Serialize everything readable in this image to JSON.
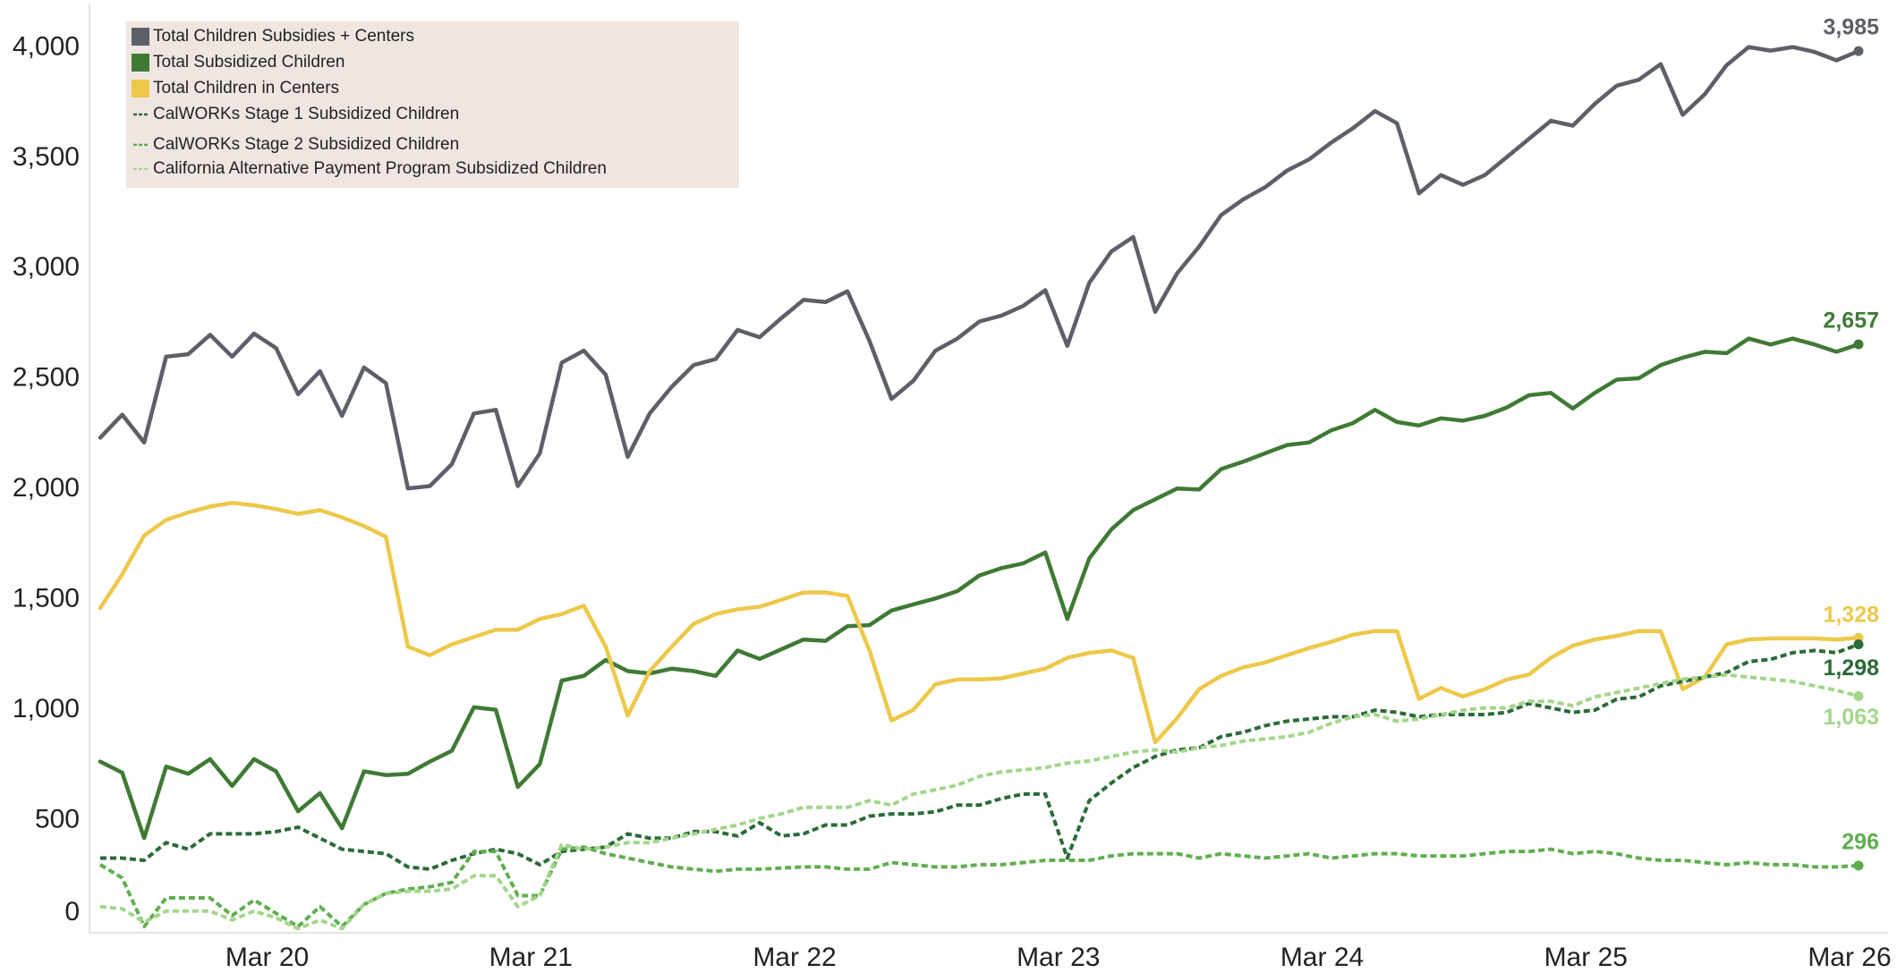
{
  "chart_data": {
    "type": "line",
    "categories": [
      null,
      null,
      null,
      null,
      null,
      null,
      null,
      null,
      "Mar 20",
      null,
      null,
      null,
      null,
      null,
      null,
      null,
      null,
      null,
      null,
      null,
      "Mar 21",
      null,
      null,
      null,
      null,
      null,
      null,
      null,
      null,
      null,
      null,
      null,
      "Mar 22",
      null,
      null,
      null,
      null,
      null,
      null,
      null,
      null,
      null,
      null,
      null,
      "Mar 23",
      null,
      null,
      null,
      null,
      null,
      null,
      null,
      null,
      null,
      null,
      null,
      "Mar 24",
      null,
      null,
      null,
      null,
      null,
      null,
      null,
      null,
      null,
      null,
      null,
      "Mar 25",
      null,
      null,
      null,
      null,
      null,
      null,
      null,
      null,
      null,
      null,
      null,
      "Mar 26"
    ],
    "ylim": [
      0,
      4200
    ],
    "yticks": [
      0,
      500,
      {
        "value": 1000,
        "label": "1,000"
      },
      {
        "value": 1500,
        "label": "1,500"
      },
      {
        "value": 2000,
        "label": "2,000"
      },
      {
        "value": 2500,
        "label": "2,500"
      },
      {
        "value": 3000,
        "label": "3,000"
      },
      {
        "value": 3500,
        "label": "3,500"
      },
      {
        "value": 4000,
        "label": "4,000"
      }
    ],
    "grid": false,
    "legend": "upper left",
    "series": [
      {
        "name": "Total Children Subsidies + Centers",
        "color": "#5d5f69",
        "dashed": false,
        "values": [
          2234,
          2338,
          2212,
          2601,
          2612,
          2700,
          2601,
          2705,
          2640,
          2431,
          2535,
          2333,
          2552,
          2481,
          2004,
          2015,
          2114,
          2344,
          2360,
          2015,
          2163,
          2574,
          2628,
          2519,
          2147,
          2344,
          2464,
          2563,
          2590,
          2722,
          2689,
          2776,
          2858,
          2848,
          2897,
          2672,
          2409,
          2492,
          2628,
          2683,
          2760,
          2787,
          2831,
          2902,
          2650,
          2935,
          3077,
          3143,
          2804,
          2979,
          3099,
          3242,
          3313,
          3368,
          3444,
          3494,
          3570,
          3636,
          3713,
          3658,
          3340,
          3423,
          3379,
          3423,
          3505,
          3587,
          3669,
          3647,
          3746,
          3828,
          3855,
          3926,
          3696,
          3789,
          3921,
          4003,
          3987,
          4003,
          3981,
          3943,
          3985
        ],
        "value_labels": [
          null,
          null,
          null,
          null,
          null,
          null,
          null,
          null,
          null,
          null,
          null,
          null,
          null,
          null,
          null,
          null,
          null,
          null,
          null,
          null,
          null,
          null,
          null,
          null,
          null,
          null,
          null,
          null,
          null,
          null,
          null,
          null,
          null,
          null,
          null,
          null,
          null,
          null,
          null,
          null,
          null,
          null,
          null,
          null,
          null,
          null,
          null,
          null,
          null,
          null,
          null,
          null,
          null,
          null,
          null,
          null,
          null,
          null,
          null,
          null,
          null,
          null,
          null,
          null,
          null,
          null,
          null,
          null,
          null,
          null,
          null,
          null,
          null,
          null,
          null,
          null,
          null,
          null,
          null,
          null,
          "3,985"
        ]
      },
      {
        "name": "Total Subsidized Children",
        "color": "#3f7a35",
        "dashed": false,
        "values": [
          767,
          717,
          421,
          745,
          712,
          778,
          657,
          778,
          723,
          542,
          624,
          465,
          723,
          706,
          712,
          767,
          816,
          1013,
          1002,
          652,
          756,
          1134,
          1155,
          1227,
          1177,
          1166,
          1188,
          1177,
          1155,
          1270,
          1232,
          1276,
          1320,
          1314,
          1380,
          1385,
          1451,
          1479,
          1506,
          1539,
          1610,
          1643,
          1665,
          1714,
          1413,
          1687,
          1818,
          1906,
          1955,
          2004,
          1999,
          2092,
          2125,
          2163,
          2201,
          2212,
          2267,
          2300,
          2360,
          2305,
          2289,
          2322,
          2311,
          2333,
          2371,
          2426,
          2437,
          2366,
          2437,
          2497,
          2503,
          2563,
          2596,
          2623,
          2617,
          2683,
          2656,
          2683,
          2656,
          2623,
          2657
        ],
        "value_labels": [
          null,
          null,
          null,
          null,
          null,
          null,
          null,
          null,
          null,
          null,
          null,
          null,
          null,
          null,
          null,
          null,
          null,
          null,
          null,
          null,
          null,
          null,
          null,
          null,
          null,
          null,
          null,
          null,
          null,
          null,
          null,
          null,
          null,
          null,
          null,
          null,
          null,
          null,
          null,
          null,
          null,
          null,
          null,
          null,
          null,
          null,
          null,
          null,
          null,
          null,
          null,
          null,
          null,
          null,
          null,
          null,
          null,
          null,
          null,
          null,
          null,
          null,
          null,
          null,
          null,
          null,
          null,
          null,
          null,
          null,
          null,
          null,
          null,
          null,
          null,
          null,
          null,
          null,
          null,
          null,
          "2,657"
        ]
      },
      {
        "name": "Total Children in Centers",
        "color": "#edc84a",
        "dashed": false,
        "values": [
          1462,
          1615,
          1791,
          1862,
          1895,
          1922,
          1939,
          1928,
          1911,
          1889,
          1906,
          1873,
          1834,
          1785,
          1287,
          1249,
          1298,
          1331,
          1364,
          1364,
          1413,
          1435,
          1473,
          1287,
          975,
          1177,
          1287,
          1391,
          1435,
          1457,
          1468,
          1500,
          1533,
          1533,
          1517,
          1270,
          953,
          1002,
          1117,
          1139,
          1139,
          1144,
          1166,
          1188,
          1237,
          1259,
          1270,
          1237,
          854,
          964,
          1095,
          1155,
          1194,
          1216,
          1249,
          1281,
          1309,
          1342,
          1358,
          1358,
          1051,
          1101,
          1062,
          1095,
          1139,
          1161,
          1237,
          1292,
          1320,
          1336,
          1358,
          1358,
          1095,
          1150,
          1298,
          1320,
          1325,
          1325,
          1325,
          1320,
          1328
        ],
        "value_labels": [
          null,
          null,
          null,
          null,
          null,
          null,
          null,
          null,
          null,
          null,
          null,
          null,
          null,
          null,
          null,
          null,
          null,
          null,
          null,
          null,
          null,
          null,
          null,
          null,
          null,
          null,
          null,
          null,
          null,
          null,
          null,
          null,
          null,
          null,
          null,
          null,
          null,
          null,
          null,
          null,
          null,
          null,
          null,
          null,
          null,
          null,
          null,
          null,
          null,
          null,
          null,
          null,
          null,
          null,
          null,
          null,
          null,
          null,
          null,
          null,
          null,
          null,
          null,
          null,
          null,
          null,
          null,
          null,
          null,
          null,
          null,
          null,
          null,
          null,
          null,
          null,
          null,
          null,
          null,
          null,
          "1,328"
        ]
      },
      {
        "name": "CalWORKs Stage 1 Subsidized Children",
        "color": "#2a6b38",
        "dashed": true,
        "values": [
          330,
          330,
          320,
          400,
          370,
          440,
          440,
          440,
          450,
          470,
          420,
          370,
          360,
          350,
          290,
          280,
          320,
          350,
          370,
          350,
          300,
          360,
          370,
          380,
          440,
          420,
          420,
          450,
          450,
          430,
          490,
          430,
          440,
          480,
          480,
          520,
          530,
          530,
          540,
          570,
          570,
          600,
          620,
          620,
          330,
          590,
          670,
          740,
          790,
          820,
          830,
          880,
          900,
          930,
          950,
          960,
          970,
          970,
          1000,
          990,
          970,
          980,
          980,
          980,
          990,
          1030,
          1010,
          990,
          1000,
          1050,
          1060,
          1110,
          1130,
          1150,
          1170,
          1220,
          1230,
          1260,
          1270,
          1260,
          1298
        ],
        "value_labels": [
          null,
          null,
          null,
          null,
          null,
          null,
          null,
          null,
          null,
          null,
          null,
          null,
          null,
          null,
          null,
          null,
          null,
          null,
          null,
          null,
          null,
          null,
          null,
          null,
          null,
          null,
          null,
          null,
          null,
          null,
          null,
          null,
          null,
          null,
          null,
          null,
          null,
          null,
          null,
          null,
          null,
          null,
          null,
          null,
          null,
          null,
          null,
          null,
          null,
          null,
          null,
          null,
          null,
          null,
          null,
          null,
          null,
          null,
          null,
          null,
          null,
          null,
          null,
          null,
          null,
          null,
          null,
          null,
          null,
          null,
          null,
          null,
          null,
          null,
          null,
          null,
          null,
          null,
          null,
          null,
          "1,298"
        ]
      },
      {
        "name": "CalWORKs Stage 2 Subsidized Children",
        "color": "#5fae4e",
        "dashed": true,
        "values": [
          300,
          240,
          20,
          150,
          150,
          150,
          70,
          140,
          80,
          20,
          110,
          20,
          120,
          170,
          190,
          200,
          220,
          360,
          360,
          160,
          160,
          370,
          380,
          350,
          330,
          310,
          290,
          280,
          270,
          280,
          280,
          285,
          290,
          290,
          280,
          280,
          310,
          300,
          290,
          290,
          300,
          300,
          310,
          320,
          320,
          320,
          340,
          350,
          350,
          350,
          330,
          350,
          340,
          330,
          340,
          350,
          330,
          340,
          350,
          350,
          340,
          340,
          340,
          350,
          360,
          360,
          370,
          350,
          360,
          350,
          330,
          320,
          320,
          310,
          300,
          310,
          300,
          300,
          290,
          290,
          296
        ],
        "value_labels": [
          null,
          null,
          null,
          null,
          null,
          null,
          null,
          null,
          null,
          null,
          null,
          null,
          null,
          null,
          null,
          null,
          null,
          null,
          null,
          null,
          null,
          null,
          null,
          null,
          null,
          null,
          null,
          null,
          null,
          null,
          null,
          null,
          null,
          null,
          null,
          null,
          null,
          null,
          null,
          null,
          null,
          null,
          null,
          null,
          null,
          null,
          null,
          null,
          null,
          null,
          null,
          null,
          null,
          null,
          null,
          null,
          null,
          null,
          null,
          null,
          null,
          null,
          null,
          null,
          null,
          null,
          null,
          null,
          null,
          null,
          null,
          null,
          null,
          null,
          null,
          null,
          null,
          null,
          null,
          null,
          "296"
        ]
      },
      {
        "name": "California Alternative Payment Program Subsidized Children",
        "color": "#a3d68a",
        "dashed": true,
        "values": [
          110,
          100,
          40,
          90,
          90,
          90,
          50,
          90,
          60,
          10,
          50,
          10,
          120,
          170,
          180,
          180,
          190,
          250,
          250,
          110,
          160,
          390,
          370,
          380,
          400,
          400,
          420,
          440,
          460,
          480,
          510,
          530,
          560,
          560,
          560,
          590,
          570,
          620,
          640,
          660,
          700,
          720,
          730,
          740,
          760,
          770,
          790,
          810,
          820,
          810,
          830,
          840,
          860,
          870,
          880,
          900,
          940,
          970,
          980,
          950,
          960,
          980,
          1000,
          1010,
          1010,
          1040,
          1040,
          1020,
          1060,
          1080,
          1100,
          1120,
          1140,
          1150,
          1160,
          1150,
          1140,
          1130,
          1110,
          1090,
          1063
        ],
        "value_labels": [
          null,
          null,
          null,
          null,
          null,
          null,
          null,
          null,
          null,
          null,
          null,
          null,
          null,
          null,
          null,
          null,
          null,
          null,
          null,
          null,
          null,
          null,
          null,
          null,
          null,
          null,
          null,
          null,
          null,
          null,
          null,
          null,
          null,
          null,
          null,
          null,
          null,
          null,
          null,
          null,
          null,
          null,
          null,
          null,
          null,
          null,
          null,
          null,
          null,
          null,
          null,
          null,
          null,
          null,
          null,
          null,
          null,
          null,
          null,
          null,
          null,
          null,
          null,
          null,
          null,
          null,
          null,
          null,
          null,
          null,
          null,
          null,
          null,
          null,
          null,
          null,
          null,
          null,
          null,
          null,
          "1,063"
        ]
      }
    ]
  }
}
